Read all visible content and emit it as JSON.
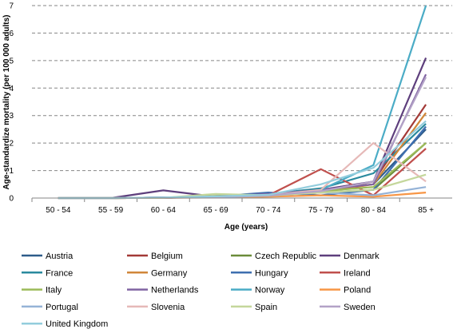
{
  "chart_data": {
    "type": "line",
    "title": "",
    "xlabel": "Age (years)",
    "ylabel": "Age-standardize mortality (per 100 000 adults)",
    "categories": [
      "50 - 54",
      "55 - 59",
      "60 - 64",
      "65 - 69",
      "70 - 74",
      "75 - 79",
      "80 - 84",
      "85 +"
    ],
    "ylim": [
      0,
      7
    ],
    "yticks": [
      0,
      1,
      2,
      3,
      4,
      5,
      6,
      7
    ],
    "grid": "horizontal dashed",
    "legend_position": "bottom",
    "series": [
      {
        "name": "Austria",
        "color": "#2e5c8a",
        "values": [
          0,
          0,
          0.02,
          0.05,
          0.1,
          0.3,
          0.5,
          2.5
        ]
      },
      {
        "name": "Belgium",
        "color": "#a33a37",
        "values": [
          0,
          0,
          0.01,
          0.04,
          0.12,
          0.2,
          0.6,
          3.4
        ]
      },
      {
        "name": "Czech Republic",
        "color": "#6b8c3a",
        "values": [
          0,
          0,
          0.01,
          0.05,
          0.1,
          0.2,
          0.3,
          2.0
        ]
      },
      {
        "name": "Denmark",
        "color": "#5e3f7d",
        "values": [
          0,
          0,
          0.28,
          0.05,
          0.1,
          0.3,
          0.6,
          5.1
        ]
      },
      {
        "name": "France",
        "color": "#2a8a9e",
        "values": [
          0,
          0,
          0.02,
          0.05,
          0.15,
          0.35,
          0.9,
          2.7
        ]
      },
      {
        "name": "Germany",
        "color": "#d0873a",
        "values": [
          0,
          0,
          0.01,
          0.04,
          0.1,
          0.2,
          0.5,
          3.1
        ]
      },
      {
        "name": "Hungary",
        "color": "#3e6fb0",
        "values": [
          0,
          0,
          0.02,
          0.06,
          0.2,
          0.1,
          0.3,
          2.6
        ]
      },
      {
        "name": "Ireland",
        "color": "#c0504d",
        "values": [
          0,
          0,
          0.01,
          0.05,
          0.1,
          1.05,
          0.1,
          1.8
        ]
      },
      {
        "name": "Italy",
        "color": "#9bbb59",
        "values": [
          0,
          0,
          0.01,
          0.08,
          0.12,
          0.25,
          0.4,
          2.0
        ]
      },
      {
        "name": "Netherlands",
        "color": "#8064a2",
        "values": [
          0,
          0,
          0.02,
          0.06,
          0.15,
          0.3,
          0.5,
          4.5
        ]
      },
      {
        "name": "Norway",
        "color": "#4bacc6",
        "values": [
          0,
          0,
          0.01,
          0.05,
          0.1,
          0.3,
          1.2,
          7.0
        ]
      },
      {
        "name": "Poland",
        "color": "#f79646",
        "values": [
          0,
          0,
          0.01,
          0.02,
          0.05,
          0.1,
          0.05,
          0.2
        ]
      },
      {
        "name": "Portugal",
        "color": "#95b3d7",
        "values": [
          0,
          0,
          0.01,
          0.03,
          0.08,
          0.2,
          0.1,
          0.4
        ]
      },
      {
        "name": "Slovenia",
        "color": "#e6b9b8",
        "values": [
          0,
          0,
          0.01,
          0.05,
          0.1,
          0.3,
          2.0,
          0.6
        ]
      },
      {
        "name": "Spain",
        "color": "#c4d79b",
        "values": [
          0,
          0,
          0.01,
          0.15,
          0.1,
          0.2,
          0.3,
          0.85
        ]
      },
      {
        "name": "Sweden",
        "color": "#b3a2c7",
        "values": [
          0,
          0,
          0.02,
          0.05,
          0.1,
          0.25,
          0.6,
          4.4
        ]
      },
      {
        "name": "United Kingdom",
        "color": "#93cddd",
        "values": [
          0,
          0,
          0.02,
          0.06,
          0.12,
          0.5,
          1.1,
          2.8
        ]
      }
    ]
  }
}
